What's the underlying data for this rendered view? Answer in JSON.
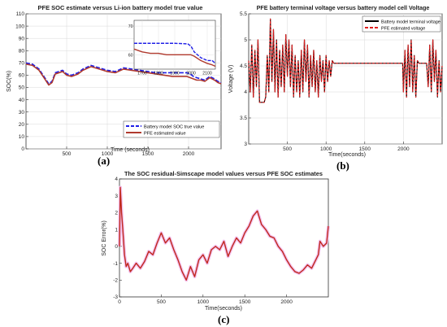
{
  "chart_data": [
    {
      "type": "line",
      "panel_label": "(a)",
      "title": "PFE SOC estimate versus Li-ion battery model true value",
      "xlabel": "Time (seconds)",
      "ylabel": "SOC(%)",
      "xlim": [
        0,
        2400
      ],
      "ylim": [
        0,
        110
      ],
      "xticks": [
        500,
        1000,
        1500,
        2000
      ],
      "yticks": [
        0,
        10,
        20,
        30,
        40,
        50,
        60,
        70,
        80,
        90,
        100,
        110
      ],
      "grid": true,
      "legend": "bottom-right",
      "series": [
        {
          "name": "Battery model SOC true value",
          "color": "#1f1fe6",
          "style": "dashed",
          "x": [
            0,
            80,
            160,
            240,
            280,
            320,
            360,
            450,
            500,
            560,
            640,
            700,
            800,
            900,
            1000,
            1100,
            1200,
            1300,
            1400,
            1500,
            1600,
            1700,
            1800,
            1900,
            1980,
            2020,
            2060,
            2100,
            2150,
            2200,
            2260,
            2320,
            2360,
            2400
          ],
          "y": [
            70,
            69,
            65,
            57,
            53,
            55,
            62,
            64,
            61,
            60,
            62,
            65,
            68,
            66,
            64,
            63,
            66,
            65,
            64,
            63,
            62,
            62,
            62,
            62,
            62,
            61,
            59,
            58,
            57,
            56,
            59,
            57,
            55,
            54
          ]
        },
        {
          "name": "PFE estimated value",
          "color": "#b03a2e",
          "style": "solid",
          "x": [
            0,
            80,
            160,
            240,
            280,
            320,
            360,
            450,
            500,
            560,
            640,
            700,
            800,
            900,
            1000,
            1100,
            1200,
            1300,
            1400,
            1500,
            1600,
            1700,
            1800,
            1900,
            1980,
            2020,
            2060,
            2100,
            2150,
            2200,
            2260,
            2320,
            2360,
            2400
          ],
          "y": [
            69,
            68,
            64,
            56,
            52,
            54,
            61,
            63,
            60,
            59,
            61,
            64,
            67,
            65,
            63,
            62,
            65,
            64,
            63,
            62,
            61,
            60,
            59,
            59,
            59,
            58,
            57,
            56,
            56,
            55,
            58,
            56,
            54,
            53
          ]
        }
      ],
      "inset": {
        "xlim": [
          1650,
          2150
        ],
        "ylim": [
          55,
          72
        ],
        "xticks": [
          1700,
          1800,
          1900,
          2000,
          2100
        ],
        "yticks": [
          60,
          70
        ],
        "series": [
          {
            "name": "Battery model SOC true value",
            "color": "#1f1fe6",
            "style": "dashed",
            "x": [
              1650,
              1700,
              1800,
              1900,
              1980,
              2000,
              2020,
              2060,
              2100,
              2130,
              2150
            ],
            "y": [
              64,
              64,
              64,
              64,
              63.8,
              63,
              61,
              59,
              58,
              58,
              57
            ]
          },
          {
            "name": "PFE estimated value",
            "color": "#b03a2e",
            "style": "solid",
            "x": [
              1650,
              1700,
              1750,
              1800,
              1850,
              1900,
              1950,
              2000,
              2020,
              2060,
              2100,
              2130,
              2150
            ],
            "y": [
              62,
              61,
              60.5,
              60.5,
              60,
              60,
              60,
              60,
              59.5,
              58,
              57,
              56.5,
              56
            ]
          }
        ]
      }
    },
    {
      "type": "line",
      "panel_label": "(b)",
      "title": "PFE battery terminal voltage versus battery model cell Voltage",
      "xlabel": "Time(seconds)",
      "ylabel": "Voltage (V)",
      "xlim": [
        0,
        2500
      ],
      "ylim": [
        3,
        5.5
      ],
      "xticks": [
        500,
        1000,
        1500,
        2000
      ],
      "yticks": [
        3,
        3.5,
        4,
        4.5,
        5,
        5.5
      ],
      "grid": true,
      "legend": "top-right",
      "series": [
        {
          "name": "Battery model terminal voltage",
          "color": "#000000",
          "style": "solid",
          "x": [
            0,
            20,
            40,
            60,
            80,
            100,
            120,
            140,
            160,
            180,
            200,
            220,
            240,
            260,
            280,
            300,
            320,
            340,
            360,
            380,
            400,
            420,
            440,
            460,
            480,
            500,
            520,
            540,
            560,
            580,
            600,
            620,
            640,
            660,
            680,
            700,
            720,
            740,
            760,
            780,
            800,
            820,
            840,
            860,
            880,
            900,
            920,
            940,
            960,
            980,
            1000,
            1020,
            1040,
            1060,
            1080,
            1100,
            1200,
            1400,
            1600,
            1800,
            1990,
            2000,
            2020,
            2040,
            2060,
            2080,
            2100,
            2120,
            2140,
            2160,
            2180,
            2200,
            2250,
            2300,
            2320,
            2340,
            2360,
            2380,
            2400,
            2420,
            2440,
            2460,
            2480,
            2500
          ],
          "y": [
            4.6,
            4.0,
            4.9,
            3.9,
            4.8,
            4.1,
            5.0,
            3.8,
            3.8,
            3.8,
            3.8,
            3.9,
            4.7,
            4.0,
            5.4,
            4.2,
            5.2,
            4.0,
            5.0,
            3.9,
            4.8,
            4.1,
            4.9,
            4.0,
            5.1,
            4.3,
            5.0,
            4.1,
            4.9,
            3.9,
            4.7,
            4.0,
            4.6,
            3.9,
            4.8,
            4.0,
            5.0,
            4.2,
            4.9,
            3.9,
            4.7,
            4.1,
            4.8,
            4.0,
            4.6,
            3.9,
            4.7,
            4.2,
            4.6,
            4.0,
            4.7,
            4.2,
            4.6,
            4.3,
            4.6,
            4.55,
            4.55,
            4.55,
            4.55,
            4.55,
            4.55,
            4.0,
            4.8,
            3.9,
            4.9,
            4.1,
            5.0,
            4.0,
            4.7,
            3.9,
            4.6,
            4.55,
            4.55,
            4.55,
            4.1,
            4.9,
            4.0,
            5.0,
            4.2,
            4.8,
            3.9,
            4.6,
            4.0,
            4.5
          ]
        },
        {
          "name": "PFE  estimated voltage",
          "color": "#e02020",
          "style": "dashed",
          "x": [
            0,
            20,
            40,
            60,
            80,
            100,
            120,
            140,
            160,
            180,
            200,
            220,
            240,
            260,
            280,
            300,
            320,
            340,
            360,
            380,
            400,
            420,
            440,
            460,
            480,
            500,
            520,
            540,
            560,
            580,
            600,
            620,
            640,
            660,
            680,
            700,
            720,
            740,
            760,
            780,
            800,
            820,
            840,
            860,
            880,
            900,
            920,
            940,
            960,
            980,
            1000,
            1020,
            1040,
            1060,
            1080,
            1100,
            1200,
            1400,
            1600,
            1800,
            1990,
            2000,
            2020,
            2040,
            2060,
            2080,
            2100,
            2120,
            2140,
            2160,
            2180,
            2200,
            2250,
            2300,
            2320,
            2340,
            2360,
            2380,
            2400,
            2420,
            2440,
            2460,
            2480,
            2500
          ],
          "y": [
            4.6,
            4.0,
            4.9,
            3.9,
            4.8,
            4.1,
            5.0,
            3.8,
            3.8,
            3.8,
            3.8,
            3.9,
            4.7,
            4.0,
            5.4,
            4.2,
            5.2,
            4.0,
            5.0,
            3.9,
            4.8,
            4.1,
            4.9,
            4.0,
            5.1,
            4.3,
            5.0,
            4.1,
            4.9,
            3.9,
            4.7,
            4.0,
            4.6,
            3.9,
            4.8,
            4.0,
            5.0,
            4.2,
            4.9,
            3.9,
            4.7,
            4.1,
            4.8,
            4.0,
            4.6,
            3.9,
            4.7,
            4.2,
            4.6,
            4.0,
            4.7,
            4.2,
            4.6,
            4.3,
            4.6,
            4.55,
            4.55,
            4.55,
            4.55,
            4.55,
            4.55,
            4.0,
            4.8,
            3.9,
            4.9,
            4.1,
            5.0,
            4.0,
            4.7,
            3.9,
            4.6,
            4.55,
            4.55,
            4.55,
            4.1,
            4.9,
            4.0,
            5.0,
            4.2,
            4.8,
            3.9,
            4.6,
            4.0,
            4.5
          ]
        }
      ]
    },
    {
      "type": "line",
      "panel_label": "(c)",
      "title": "The SOC residual-Simscape model values versus PFE SOC estimates",
      "xlabel": "Time(seconds)",
      "ylabel": "SOC Error(%)",
      "xlim": [
        0,
        2500
      ],
      "ylim": [
        -3,
        4
      ],
      "xticks": [
        0,
        500,
        1000,
        1500,
        2000
      ],
      "yticks": [
        -3,
        -2,
        -1,
        0,
        1,
        2,
        3,
        4
      ],
      "grid": false,
      "series": [
        {
          "name": "",
          "color": "#c0281c",
          "style": "solid",
          "x": [
            0,
            10,
            25,
            40,
            60,
            80,
            100,
            130,
            160,
            200,
            250,
            300,
            350,
            400,
            450,
            500,
            550,
            600,
            650,
            700,
            750,
            800,
            850,
            900,
            950,
            1000,
            1050,
            1100,
            1150,
            1200,
            1250,
            1300,
            1350,
            1400,
            1450,
            1500,
            1550,
            1600,
            1650,
            1700,
            1750,
            1800,
            1850,
            1900,
            1950,
            2000,
            2050,
            2100,
            2150,
            2200,
            2250,
            2300,
            2350,
            2380,
            2400,
            2440,
            2480,
            2500
          ],
          "y": [
            0,
            3.5,
            2.0,
            1.0,
            -0.5,
            -1.2,
            -1.0,
            -1.5,
            -1.3,
            -1.0,
            -1.3,
            -0.9,
            -0.3,
            -0.5,
            0.2,
            0.8,
            0.2,
            0.5,
            -0.2,
            -0.8,
            -1.5,
            -2.0,
            -1.2,
            -1.8,
            -0.8,
            -0.5,
            -1.0,
            -0.2,
            0.0,
            -0.2,
            0.3,
            -0.6,
            0.0,
            0.5,
            0.2,
            0.8,
            1.2,
            1.8,
            2.1,
            1.3,
            1.0,
            0.6,
            0.5,
            0.0,
            -0.3,
            -0.8,
            -1.2,
            -1.5,
            -1.6,
            -1.4,
            -1.1,
            -1.3,
            -0.8,
            -0.5,
            0.3,
            0.0,
            0.2,
            1.2
          ]
        }
      ]
    }
  ]
}
